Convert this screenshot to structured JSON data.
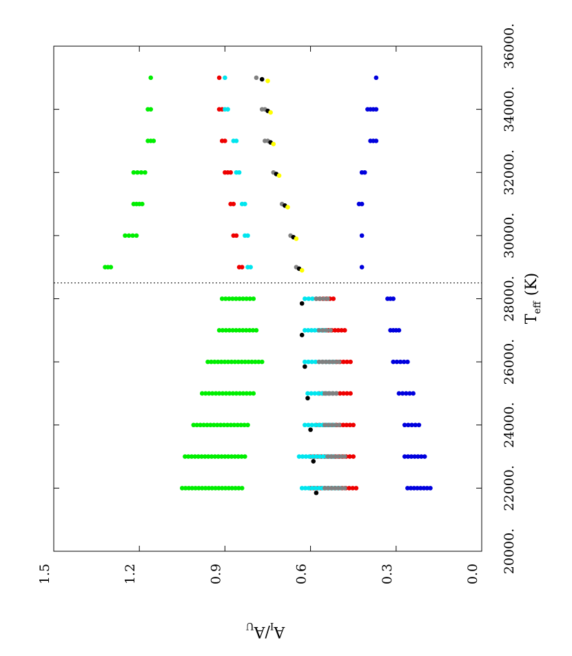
{
  "chart_data": {
    "type": "scatter",
    "title": "",
    "xlabel": "T",
    "xlabel_sub": "eff",
    "xlabel_unit": "(K)",
    "ylabel_main": "A",
    "ylabel_sub_1": "I",
    "ylabel_slash": "/",
    "ylabel_sub_2": "U",
    "ylabel_main_2": "A",
    "xlim": [
      20000,
      36000
    ],
    "ylim": [
      0.0,
      1.5
    ],
    "xticks": [
      "20000.",
      "22000.",
      "24000.",
      "26000.",
      "28000.",
      "30000.",
      "32000.",
      "34000.",
      "36000."
    ],
    "yticks": [
      "0.0",
      "0.3",
      "0.6",
      "0.9",
      "1.2",
      "1.5"
    ],
    "xtick_values": [
      20000,
      22000,
      24000,
      26000,
      28000,
      30000,
      32000,
      34000,
      36000
    ],
    "ytick_values": [
      0.0,
      0.3,
      0.6,
      0.9,
      1.2,
      1.5
    ],
    "orientation": "rotated 90° (landscape plot rendered on portrait page)",
    "divider_x": 28500,
    "divider_style": "dotted",
    "grid": false,
    "legend": "none",
    "series": [
      {
        "color": "#00ee00",
        "groups": [
          {
            "x": 22000,
            "y_min": 0.84,
            "y_max": 1.05
          },
          {
            "x": 23000,
            "y_min": 0.83,
            "y_max": 1.04
          },
          {
            "x": 24000,
            "y_min": 0.82,
            "y_max": 1.01
          },
          {
            "x": 25000,
            "y_min": 0.8,
            "y_max": 0.98
          },
          {
            "x": 26000,
            "y_min": 0.77,
            "y_max": 0.96
          },
          {
            "x": 27000,
            "y_min": 0.79,
            "y_max": 0.92
          },
          {
            "x": 28000,
            "y_min": 0.8,
            "y_max": 0.91
          },
          {
            "x": 29000,
            "y_min": 1.3,
            "y_max": 1.32
          },
          {
            "x": 30000,
            "y_min": 1.21,
            "y_max": 1.25
          },
          {
            "x": 31000,
            "y_min": 1.19,
            "y_max": 1.22
          },
          {
            "x": 32000,
            "y_min": 1.18,
            "y_max": 1.22
          },
          {
            "x": 33000,
            "y_min": 1.15,
            "y_max": 1.17
          },
          {
            "x": 34000,
            "y_min": 1.16,
            "y_max": 1.17
          },
          {
            "x": 35000,
            "y_min": 1.16,
            "y_max": 1.16
          }
        ]
      },
      {
        "color": "#ee0000",
        "groups": [
          {
            "x": 22000,
            "y_min": 0.44,
            "y_max": 0.6
          },
          {
            "x": 23000,
            "y_min": 0.45,
            "y_max": 0.6
          },
          {
            "x": 24000,
            "y_min": 0.45,
            "y_max": 0.58
          },
          {
            "x": 25000,
            "y_min": 0.46,
            "y_max": 0.57
          },
          {
            "x": 26000,
            "y_min": 0.46,
            "y_max": 0.57
          },
          {
            "x": 27000,
            "y_min": 0.48,
            "y_max": 0.56
          },
          {
            "x": 28000,
            "y_min": 0.52,
            "y_max": 0.58
          },
          {
            "x": 29000,
            "y_min": 0.84,
            "y_max": 0.85
          },
          {
            "x": 30000,
            "y_min": 0.86,
            "y_max": 0.87
          },
          {
            "x": 31000,
            "y_min": 0.87,
            "y_max": 0.88
          },
          {
            "x": 32000,
            "y_min": 0.88,
            "y_max": 0.9
          },
          {
            "x": 33000,
            "y_min": 0.9,
            "y_max": 0.91
          },
          {
            "x": 34000,
            "y_min": 0.91,
            "y_max": 0.92
          },
          {
            "x": 35000,
            "y_min": 0.92,
            "y_max": 0.92
          }
        ]
      },
      {
        "color": "#00e5ee",
        "groups": [
          {
            "x": 22000,
            "y_min": 0.5,
            "y_max": 0.63
          },
          {
            "x": 23000,
            "y_min": 0.52,
            "y_max": 0.64
          },
          {
            "x": 24000,
            "y_min": 0.52,
            "y_max": 0.62
          },
          {
            "x": 25000,
            "y_min": 0.51,
            "y_max": 0.61
          },
          {
            "x": 26000,
            "y_min": 0.52,
            "y_max": 0.62
          },
          {
            "x": 27000,
            "y_min": 0.55,
            "y_max": 0.62
          },
          {
            "x": 28000,
            "y_min": 0.58,
            "y_max": 0.62
          },
          {
            "x": 29000,
            "y_min": 0.81,
            "y_max": 0.82
          },
          {
            "x": 30000,
            "y_min": 0.82,
            "y_max": 0.83
          },
          {
            "x": 31000,
            "y_min": 0.83,
            "y_max": 0.84
          },
          {
            "x": 32000,
            "y_min": 0.85,
            "y_max": 0.86
          },
          {
            "x": 33000,
            "y_min": 0.86,
            "y_max": 0.87
          },
          {
            "x": 34000,
            "y_min": 0.89,
            "y_max": 0.9
          },
          {
            "x": 35000,
            "y_min": 0.9,
            "y_max": 0.9
          }
        ]
      },
      {
        "color": "#808080",
        "groups": [
          {
            "x": 22000,
            "y_min": 0.48,
            "y_max": 0.55
          },
          {
            "x": 23000,
            "y_min": 0.48,
            "y_max": 0.54
          },
          {
            "x": 24000,
            "y_min": 0.5,
            "y_max": 0.55
          },
          {
            "x": 25000,
            "y_min": 0.51,
            "y_max": 0.55
          },
          {
            "x": 26000,
            "y_min": 0.5,
            "y_max": 0.57
          },
          {
            "x": 27000,
            "y_min": 0.53,
            "y_max": 0.57
          },
          {
            "x": 28000,
            "y_min": 0.54,
            "y_max": 0.58
          },
          {
            "x": 29000,
            "y_min": 0.65,
            "y_max": 0.65
          },
          {
            "x": 30000,
            "y_min": 0.67,
            "y_max": 0.67
          },
          {
            "x": 31000,
            "y_min": 0.7,
            "y_max": 0.7
          },
          {
            "x": 32000,
            "y_min": 0.73,
            "y_max": 0.73
          },
          {
            "x": 33000,
            "y_min": 0.75,
            "y_max": 0.76
          },
          {
            "x": 34000,
            "y_min": 0.76,
            "y_max": 0.77
          },
          {
            "x": 35000,
            "y_min": 0.79,
            "y_max": 0.79
          }
        ]
      },
      {
        "color": "#000000",
        "points": [
          {
            "x": 21850,
            "y": 0.58
          },
          {
            "x": 22850,
            "y": 0.59
          },
          {
            "x": 23850,
            "y": 0.6
          },
          {
            "x": 24850,
            "y": 0.61
          },
          {
            "x": 25850,
            "y": 0.62
          },
          {
            "x": 26850,
            "y": 0.63
          },
          {
            "x": 27850,
            "y": 0.63
          },
          {
            "x": 28950,
            "y": 0.64
          },
          {
            "x": 29950,
            "y": 0.66
          },
          {
            "x": 30950,
            "y": 0.69
          },
          {
            "x": 31950,
            "y": 0.72
          },
          {
            "x": 32950,
            "y": 0.74
          },
          {
            "x": 33950,
            "y": 0.75
          },
          {
            "x": 34950,
            "y": 0.77
          }
        ]
      },
      {
        "color": "#ffff00",
        "points": [
          {
            "x": 28900,
            "y": 0.63
          },
          {
            "x": 29900,
            "y": 0.65
          },
          {
            "x": 30900,
            "y": 0.68
          },
          {
            "x": 31900,
            "y": 0.71
          },
          {
            "x": 32900,
            "y": 0.73
          },
          {
            "x": 33900,
            "y": 0.74
          },
          {
            "x": 34900,
            "y": 0.75
          }
        ]
      },
      {
        "color": "#0000dd",
        "groups": [
          {
            "x": 22000,
            "y_min": 0.18,
            "y_max": 0.26
          },
          {
            "x": 23000,
            "y_min": 0.2,
            "y_max": 0.27
          },
          {
            "x": 24000,
            "y_min": 0.22,
            "y_max": 0.27
          },
          {
            "x": 25000,
            "y_min": 0.24,
            "y_max": 0.29
          },
          {
            "x": 26000,
            "y_min": 0.26,
            "y_max": 0.31
          },
          {
            "x": 27000,
            "y_min": 0.29,
            "y_max": 0.32
          },
          {
            "x": 28000,
            "y_min": 0.31,
            "y_max": 0.33
          },
          {
            "x": 29000,
            "y_min": 0.42,
            "y_max": 0.42
          },
          {
            "x": 30000,
            "y_min": 0.42,
            "y_max": 0.42
          },
          {
            "x": 31000,
            "y_min": 0.42,
            "y_max": 0.43
          },
          {
            "x": 32000,
            "y_min": 0.41,
            "y_max": 0.42
          },
          {
            "x": 33000,
            "y_min": 0.37,
            "y_max": 0.39
          },
          {
            "x": 34000,
            "y_min": 0.37,
            "y_max": 0.4
          },
          {
            "x": 35000,
            "y_min": 0.37,
            "y_max": 0.37
          }
        ]
      }
    ]
  }
}
